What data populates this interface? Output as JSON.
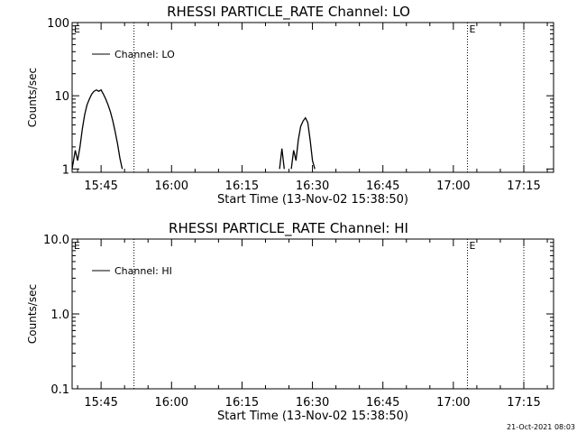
{
  "timestamp": "21-Oct-2021 08:03",
  "chart_data": [
    {
      "type": "line",
      "title": "RHESSI PARTICLE_RATE Channel: LO",
      "xlabel": "Start Time (13-Nov-02 15:38:50)",
      "ylabel": "Counts/sec",
      "yscale": "log",
      "ylim": [
        0.9,
        100
      ],
      "x_ticks": [
        "15:45",
        "16:00",
        "16:15",
        "16:30",
        "16:45",
        "17:00",
        "17:15"
      ],
      "y_ticks": [
        "1",
        "10",
        "100"
      ],
      "grid": false,
      "legend": "top-left",
      "legend_entries": [
        "Channel: LO"
      ],
      "event_markers": [
        {
          "time": "15:52",
          "label": ""
        },
        {
          "time": "17:03",
          "label": "E"
        },
        {
          "time": "17:15",
          "label": ""
        }
      ],
      "corner_marker": "E",
      "series": [
        {
          "name": "Channel: LO",
          "segments": [
            [
              [
                "15:38:50",
                1.0
              ],
              [
                "15:39:30",
                1.8
              ],
              [
                "15:40:00",
                1.3
              ],
              [
                "15:40:30",
                2.0
              ],
              [
                "15:41:00",
                3.5
              ],
              [
                "15:41:30",
                5.5
              ],
              [
                "15:42:00",
                7.5
              ],
              [
                "15:42:30",
                9.0
              ],
              [
                "15:43:00",
                10.5
              ],
              [
                "15:43:30",
                11.5
              ],
              [
                "15:44:00",
                12.0
              ],
              [
                "15:44:30",
                11.5
              ],
              [
                "15:45:00",
                12.0
              ],
              [
                "15:45:30",
                10.5
              ],
              [
                "15:46:00",
                9.0
              ],
              [
                "15:46:30",
                7.5
              ],
              [
                "15:47:00",
                6.0
              ],
              [
                "15:47:30",
                4.5
              ],
              [
                "15:48:00",
                3.2
              ],
              [
                "15:48:30",
                2.2
              ],
              [
                "15:49:00",
                1.4
              ],
              [
                "15:49:30",
                1.0
              ]
            ],
            [
              [
                "16:23:00",
                1.0
              ],
              [
                "16:23:30",
                1.9
              ],
              [
                "16:24:00",
                1.0
              ]
            ],
            [
              [
                "16:25:30",
                1.0
              ],
              [
                "16:26:00",
                1.8
              ],
              [
                "16:26:30",
                1.3
              ],
              [
                "16:27:00",
                2.5
              ],
              [
                "16:27:30",
                3.8
              ],
              [
                "16:28:00",
                4.5
              ],
              [
                "16:28:30",
                5.0
              ],
              [
                "16:29:00",
                4.3
              ],
              [
                "16:29:30",
                2.5
              ],
              [
                "16:30:00",
                1.3
              ],
              [
                "16:30:30",
                1.0
              ]
            ]
          ]
        }
      ]
    },
    {
      "type": "line",
      "title": "RHESSI PARTICLE_RATE Channel: HI",
      "xlabel": "Start Time (13-Nov-02 15:38:50)",
      "ylabel": "Counts/sec",
      "yscale": "log",
      "ylim": [
        0.1,
        10
      ],
      "x_ticks": [
        "15:45",
        "16:00",
        "16:15",
        "16:30",
        "16:45",
        "17:00",
        "17:15"
      ],
      "y_ticks": [
        "0.1",
        "1.0",
        "10.0"
      ],
      "grid": false,
      "legend": "top-left",
      "legend_entries": [
        "Channel: HI"
      ],
      "event_markers": [
        {
          "time": "15:52",
          "label": ""
        },
        {
          "time": "17:03",
          "label": "E"
        },
        {
          "time": "17:15",
          "label": ""
        }
      ],
      "corner_marker": "E",
      "series": [
        {
          "name": "Channel: HI",
          "segments": []
        }
      ]
    }
  ]
}
